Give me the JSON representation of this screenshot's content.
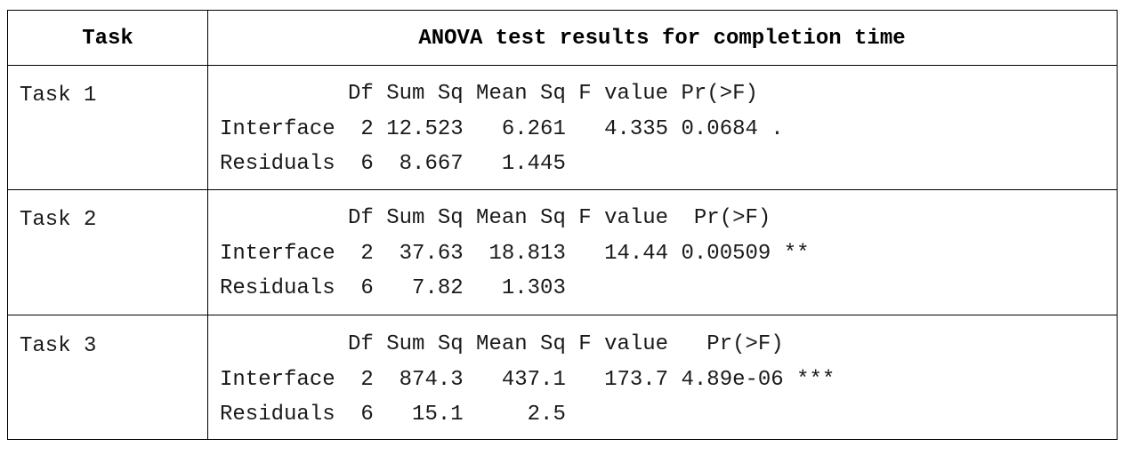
{
  "table": {
    "header": {
      "task": "Task",
      "results": "ANOVA test results for completion time"
    },
    "rows": [
      {
        "task": "Task 1",
        "lines": [
          "          Df Sum Sq Mean Sq F value Pr(>F)",
          "Interface  2 12.523   6.261   4.335 0.0684 .",
          "Residuals  6  8.667   1.445"
        ]
      },
      {
        "task": "Task 2",
        "lines": [
          "          Df Sum Sq Mean Sq F value  Pr(>F)",
          "Interface  2  37.63  18.813   14.44 0.00509 **",
          "Residuals  6   7.82   1.303"
        ]
      },
      {
        "task": "Task 3",
        "lines": [
          "          Df Sum Sq Mean Sq F value   Pr(>F)",
          "Interface  2  874.3   437.1   173.7 4.89e-06 ***",
          "Residuals  6   15.1     2.5"
        ]
      }
    ]
  }
}
